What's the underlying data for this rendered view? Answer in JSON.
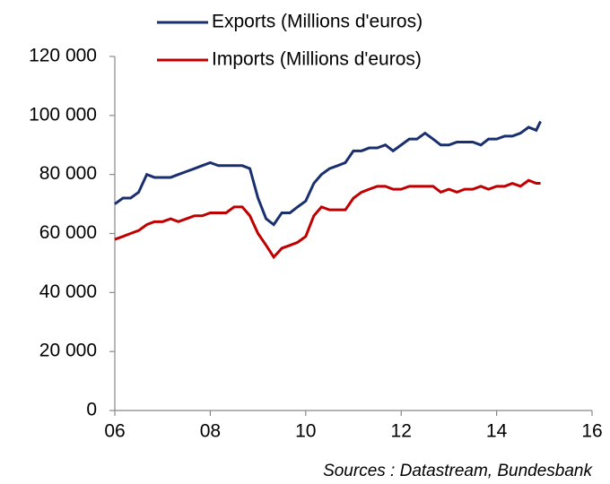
{
  "chart_data": {
    "type": "line",
    "x": [
      2006,
      2006.17,
      2006.33,
      2006.5,
      2006.67,
      2006.83,
      2007,
      2007.17,
      2007.33,
      2007.5,
      2007.67,
      2007.83,
      2008,
      2008.17,
      2008.33,
      2008.5,
      2008.67,
      2008.83,
      2009,
      2009.17,
      2009.33,
      2009.5,
      2009.67,
      2009.83,
      2010,
      2010.17,
      2010.33,
      2010.5,
      2010.67,
      2010.83,
      2011,
      2011.17,
      2011.33,
      2011.5,
      2011.67,
      2011.83,
      2012,
      2012.17,
      2012.33,
      2012.5,
      2012.67,
      2012.83,
      2013,
      2013.17,
      2013.33,
      2013.5,
      2013.67,
      2013.83,
      2014,
      2014.17,
      2014.33,
      2014.5,
      2014.67,
      2014.83,
      2014.92
    ],
    "series": [
      {
        "name": "Exports (Millions d'euros)",
        "color": "#1a2f6e",
        "values": [
          70000,
          72000,
          72000,
          74000,
          80000,
          79000,
          79000,
          79000,
          80000,
          81000,
          82000,
          83000,
          84000,
          83000,
          83000,
          83000,
          83000,
          82000,
          72000,
          65000,
          63000,
          67000,
          67000,
          69000,
          71000,
          77000,
          80000,
          82000,
          83000,
          84000,
          88000,
          88000,
          89000,
          89000,
          90000,
          88000,
          90000,
          92000,
          92000,
          94000,
          92000,
          90000,
          90000,
          91000,
          91000,
          91000,
          90000,
          92000,
          92000,
          93000,
          93000,
          94000,
          96000,
          95000,
          98000
        ]
      },
      {
        "name": "Imports (Millions d'euros)",
        "color": "#c00000",
        "values": [
          58000,
          59000,
          60000,
          61000,
          63000,
          64000,
          64000,
          65000,
          64000,
          65000,
          66000,
          66000,
          67000,
          67000,
          67000,
          69000,
          69000,
          66000,
          60000,
          56000,
          52000,
          55000,
          56000,
          57000,
          59000,
          66000,
          69000,
          68000,
          68000,
          68000,
          72000,
          74000,
          75000,
          76000,
          76000,
          75000,
          75000,
          76000,
          76000,
          76000,
          76000,
          74000,
          75000,
          74000,
          75000,
          75000,
          76000,
          75000,
          76000,
          76000,
          77000,
          76000,
          78000,
          77000,
          77000
        ]
      }
    ],
    "xlim": [
      2006,
      2016
    ],
    "xticks": [
      {
        "value": 2006,
        "label": "06"
      },
      {
        "value": 2008,
        "label": "08"
      },
      {
        "value": 2010,
        "label": "10"
      },
      {
        "value": 2012,
        "label": "12"
      },
      {
        "value": 2014,
        "label": "14"
      },
      {
        "value": 2016,
        "label": "16"
      }
    ],
    "ylim": [
      0,
      120000
    ],
    "yticks": [
      0,
      {
        "value": 20000,
        "label": "20 000"
      },
      {
        "value": 40000,
        "label": "40 000"
      },
      {
        "value": 60000,
        "label": "60 000"
      },
      {
        "value": 80000,
        "label": "80 000"
      },
      {
        "value": 100000,
        "label": "100 000"
      },
      {
        "value": 120000,
        "label": "120 000"
      }
    ],
    "source": "Sources : Datastream, Bundesbank"
  }
}
